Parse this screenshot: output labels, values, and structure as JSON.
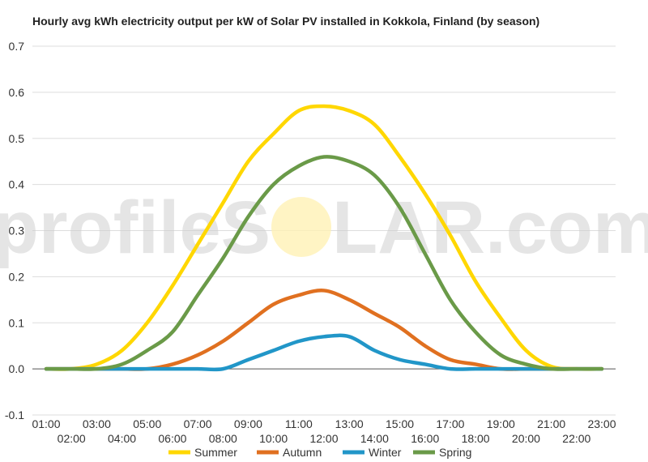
{
  "chart_data": {
    "type": "line",
    "title": "Hourly avg kWh electricity output per kW of Solar PV installed in Kokkola, Finland (by season)",
    "xlabel": "",
    "ylabel": "",
    "ylim": [
      -0.1,
      0.7
    ],
    "yticks": [
      "-0.1",
      "0.0",
      "0.1",
      "0.2",
      "0.3",
      "0.4",
      "0.5",
      "0.6",
      "0.7"
    ],
    "ytick_values": [
      -0.1,
      0,
      0.1,
      0.2,
      0.3,
      0.4,
      0.5,
      0.6,
      0.7
    ],
    "categories": [
      "01:00",
      "02:00",
      "03:00",
      "04:00",
      "05:00",
      "06:00",
      "07:00",
      "08:00",
      "09:00",
      "10:00",
      "11:00",
      "12:00",
      "13:00",
      "14:00",
      "15:00",
      "16:00",
      "17:00",
      "18:00",
      "19:00",
      "20:00",
      "21:00",
      "22:00",
      "23:00"
    ],
    "grid": true,
    "legend_position": "bottom",
    "watermark": {
      "left": "profileS",
      "right": "LAR.com"
    },
    "series": [
      {
        "name": "Summer",
        "color": "#FFD700",
        "values": [
          0,
          0,
          0.01,
          0.04,
          0.1,
          0.18,
          0.27,
          0.36,
          0.45,
          0.51,
          0.56,
          0.57,
          0.56,
          0.53,
          0.46,
          0.38,
          0.29,
          0.19,
          0.11,
          0.04,
          0.005,
          0,
          0
        ]
      },
      {
        "name": "Autumn",
        "color": "#E07020",
        "values": [
          0,
          0,
          0,
          0,
          0,
          0.01,
          0.03,
          0.06,
          0.1,
          0.14,
          0.16,
          0.17,
          0.15,
          0.12,
          0.09,
          0.05,
          0.02,
          0.01,
          0,
          0,
          0,
          0,
          0
        ]
      },
      {
        "name": "Winter",
        "color": "#2196C8",
        "values": [
          0,
          0,
          0,
          0,
          0,
          0,
          0,
          0,
          0.02,
          0.04,
          0.06,
          0.07,
          0.07,
          0.04,
          0.02,
          0.01,
          0,
          0,
          0,
          0,
          0,
          0,
          0
        ]
      },
      {
        "name": "Spring",
        "color": "#6A9A48",
        "values": [
          0,
          0,
          0,
          0.01,
          0.04,
          0.08,
          0.16,
          0.24,
          0.33,
          0.4,
          0.44,
          0.46,
          0.45,
          0.42,
          0.35,
          0.25,
          0.15,
          0.08,
          0.03,
          0.01,
          0,
          0,
          0
        ]
      }
    ]
  }
}
